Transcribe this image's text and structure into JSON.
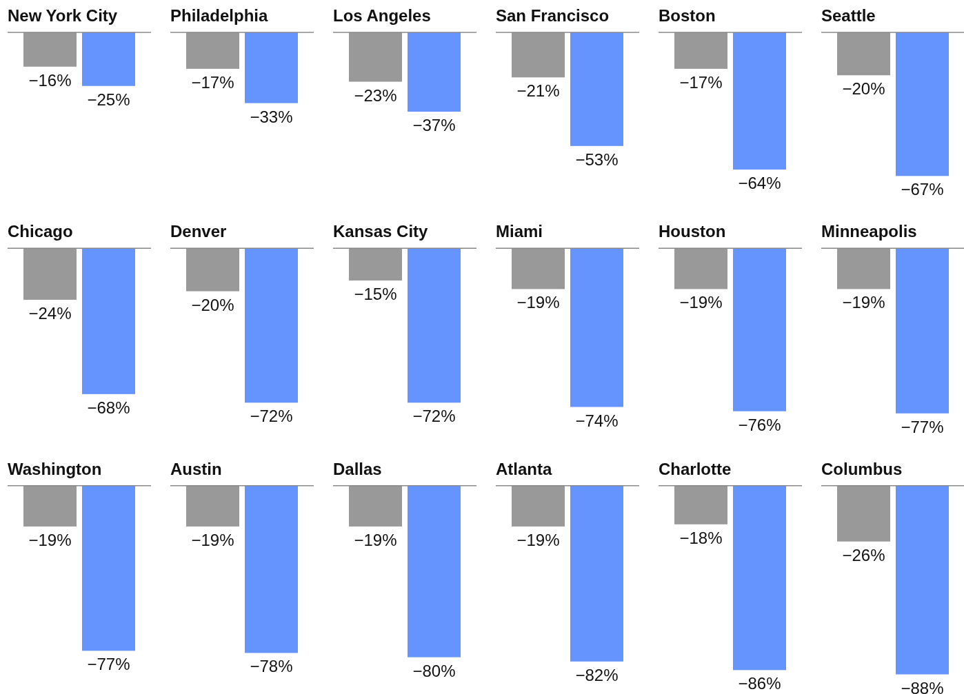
{
  "chart_data": [
    {
      "type": "bar",
      "title": "New York City",
      "categories": [
        null
      ],
      "series": [
        {
          "color": "#999999",
          "values": [
            -16
          ],
          "value_labels": [
            "−16%"
          ]
        },
        {
          "color": "#6694ff",
          "values": [
            -25
          ],
          "value_labels": [
            "−25%"
          ]
        }
      ]
    },
    {
      "type": "bar",
      "title": "Philadelphia",
      "categories": [
        null
      ],
      "series": [
        {
          "color": "#999999",
          "values": [
            -17
          ],
          "value_labels": [
            "−17%"
          ]
        },
        {
          "color": "#6694ff",
          "values": [
            -33
          ],
          "value_labels": [
            "−33%"
          ]
        }
      ]
    },
    {
      "type": "bar",
      "title": "Los Angeles",
      "categories": [
        null
      ],
      "series": [
        {
          "color": "#999999",
          "values": [
            -23
          ],
          "value_labels": [
            "−23%"
          ]
        },
        {
          "color": "#6694ff",
          "values": [
            -37
          ],
          "value_labels": [
            "−37%"
          ]
        }
      ]
    },
    {
      "type": "bar",
      "title": "San Francisco",
      "categories": [
        null
      ],
      "series": [
        {
          "color": "#999999",
          "values": [
            -21
          ],
          "value_labels": [
            "−21%"
          ]
        },
        {
          "color": "#6694ff",
          "values": [
            -53
          ],
          "value_labels": [
            "−53%"
          ]
        }
      ]
    },
    {
      "type": "bar",
      "title": "Boston",
      "categories": [
        null
      ],
      "series": [
        {
          "color": "#999999",
          "values": [
            -17
          ],
          "value_labels": [
            "−17%"
          ]
        },
        {
          "color": "#6694ff",
          "values": [
            -64
          ],
          "value_labels": [
            "−64%"
          ]
        }
      ]
    },
    {
      "type": "bar",
      "title": "Seattle",
      "categories": [
        null
      ],
      "series": [
        {
          "color": "#999999",
          "values": [
            -20
          ],
          "value_labels": [
            "−20%"
          ]
        },
        {
          "color": "#6694ff",
          "values": [
            -67
          ],
          "value_labels": [
            "−67%"
          ]
        }
      ]
    },
    {
      "type": "bar",
      "title": "Chicago",
      "categories": [
        null
      ],
      "series": [
        {
          "color": "#999999",
          "values": [
            -24
          ],
          "value_labels": [
            "−24%"
          ]
        },
        {
          "color": "#6694ff",
          "values": [
            -68
          ],
          "value_labels": [
            "−68%"
          ]
        }
      ]
    },
    {
      "type": "bar",
      "title": "Denver",
      "categories": [
        null
      ],
      "series": [
        {
          "color": "#999999",
          "values": [
            -20
          ],
          "value_labels": [
            "−20%"
          ]
        },
        {
          "color": "#6694ff",
          "values": [
            -72
          ],
          "value_labels": [
            "−72%"
          ]
        }
      ]
    },
    {
      "type": "bar",
      "title": "Kansas City",
      "categories": [
        null
      ],
      "series": [
        {
          "color": "#999999",
          "values": [
            -15
          ],
          "value_labels": [
            "−15%"
          ]
        },
        {
          "color": "#6694ff",
          "values": [
            -72
          ],
          "value_labels": [
            "−72%"
          ]
        }
      ]
    },
    {
      "type": "bar",
      "title": "Miami",
      "categories": [
        null
      ],
      "series": [
        {
          "color": "#999999",
          "values": [
            -19
          ],
          "value_labels": [
            "−19%"
          ]
        },
        {
          "color": "#6694ff",
          "values": [
            -74
          ],
          "value_labels": [
            "−74%"
          ]
        }
      ]
    },
    {
      "type": "bar",
      "title": "Houston",
      "categories": [
        null
      ],
      "series": [
        {
          "color": "#999999",
          "values": [
            -19
          ],
          "value_labels": [
            "−19%"
          ]
        },
        {
          "color": "#6694ff",
          "values": [
            -76
          ],
          "value_labels": [
            "−76%"
          ]
        }
      ]
    },
    {
      "type": "bar",
      "title": "Minneapolis",
      "categories": [
        null
      ],
      "series": [
        {
          "color": "#999999",
          "values": [
            -19
          ],
          "value_labels": [
            "−19%"
          ]
        },
        {
          "color": "#6694ff",
          "values": [
            -77
          ],
          "value_labels": [
            "−77%"
          ]
        }
      ]
    },
    {
      "type": "bar",
      "title": "Washington",
      "categories": [
        null
      ],
      "series": [
        {
          "color": "#999999",
          "values": [
            -19
          ],
          "value_labels": [
            "−19%"
          ]
        },
        {
          "color": "#6694ff",
          "values": [
            -77
          ],
          "value_labels": [
            "−77%"
          ]
        }
      ]
    },
    {
      "type": "bar",
      "title": "Austin",
      "categories": [
        null
      ],
      "series": [
        {
          "color": "#999999",
          "values": [
            -19
          ],
          "value_labels": [
            "−19%"
          ]
        },
        {
          "color": "#6694ff",
          "values": [
            -78
          ],
          "value_labels": [
            "−78%"
          ]
        }
      ]
    },
    {
      "type": "bar",
      "title": "Dallas",
      "categories": [
        null
      ],
      "series": [
        {
          "color": "#999999",
          "values": [
            -19
          ],
          "value_labels": [
            "−19%"
          ]
        },
        {
          "color": "#6694ff",
          "values": [
            -80
          ],
          "value_labels": [
            "−80%"
          ]
        }
      ]
    },
    {
      "type": "bar",
      "title": "Atlanta",
      "categories": [
        null
      ],
      "series": [
        {
          "color": "#999999",
          "values": [
            -19
          ],
          "value_labels": [
            "−19%"
          ]
        },
        {
          "color": "#6694ff",
          "values": [
            -82
          ],
          "value_labels": [
            "−82%"
          ]
        }
      ]
    },
    {
      "type": "bar",
      "title": "Charlotte",
      "categories": [
        null
      ],
      "series": [
        {
          "color": "#999999",
          "values": [
            -18
          ],
          "value_labels": [
            "−18%"
          ]
        },
        {
          "color": "#6694ff",
          "values": [
            -86
          ],
          "value_labels": [
            "−86%"
          ]
        }
      ]
    },
    {
      "type": "bar",
      "title": "Columbus",
      "categories": [
        null
      ],
      "series": [
        {
          "color": "#999999",
          "values": [
            -26
          ],
          "value_labels": [
            "−26%"
          ]
        },
        {
          "color": "#6694ff",
          "values": [
            -88
          ],
          "value_labels": [
            "−88%"
          ]
        }
      ]
    }
  ]
}
